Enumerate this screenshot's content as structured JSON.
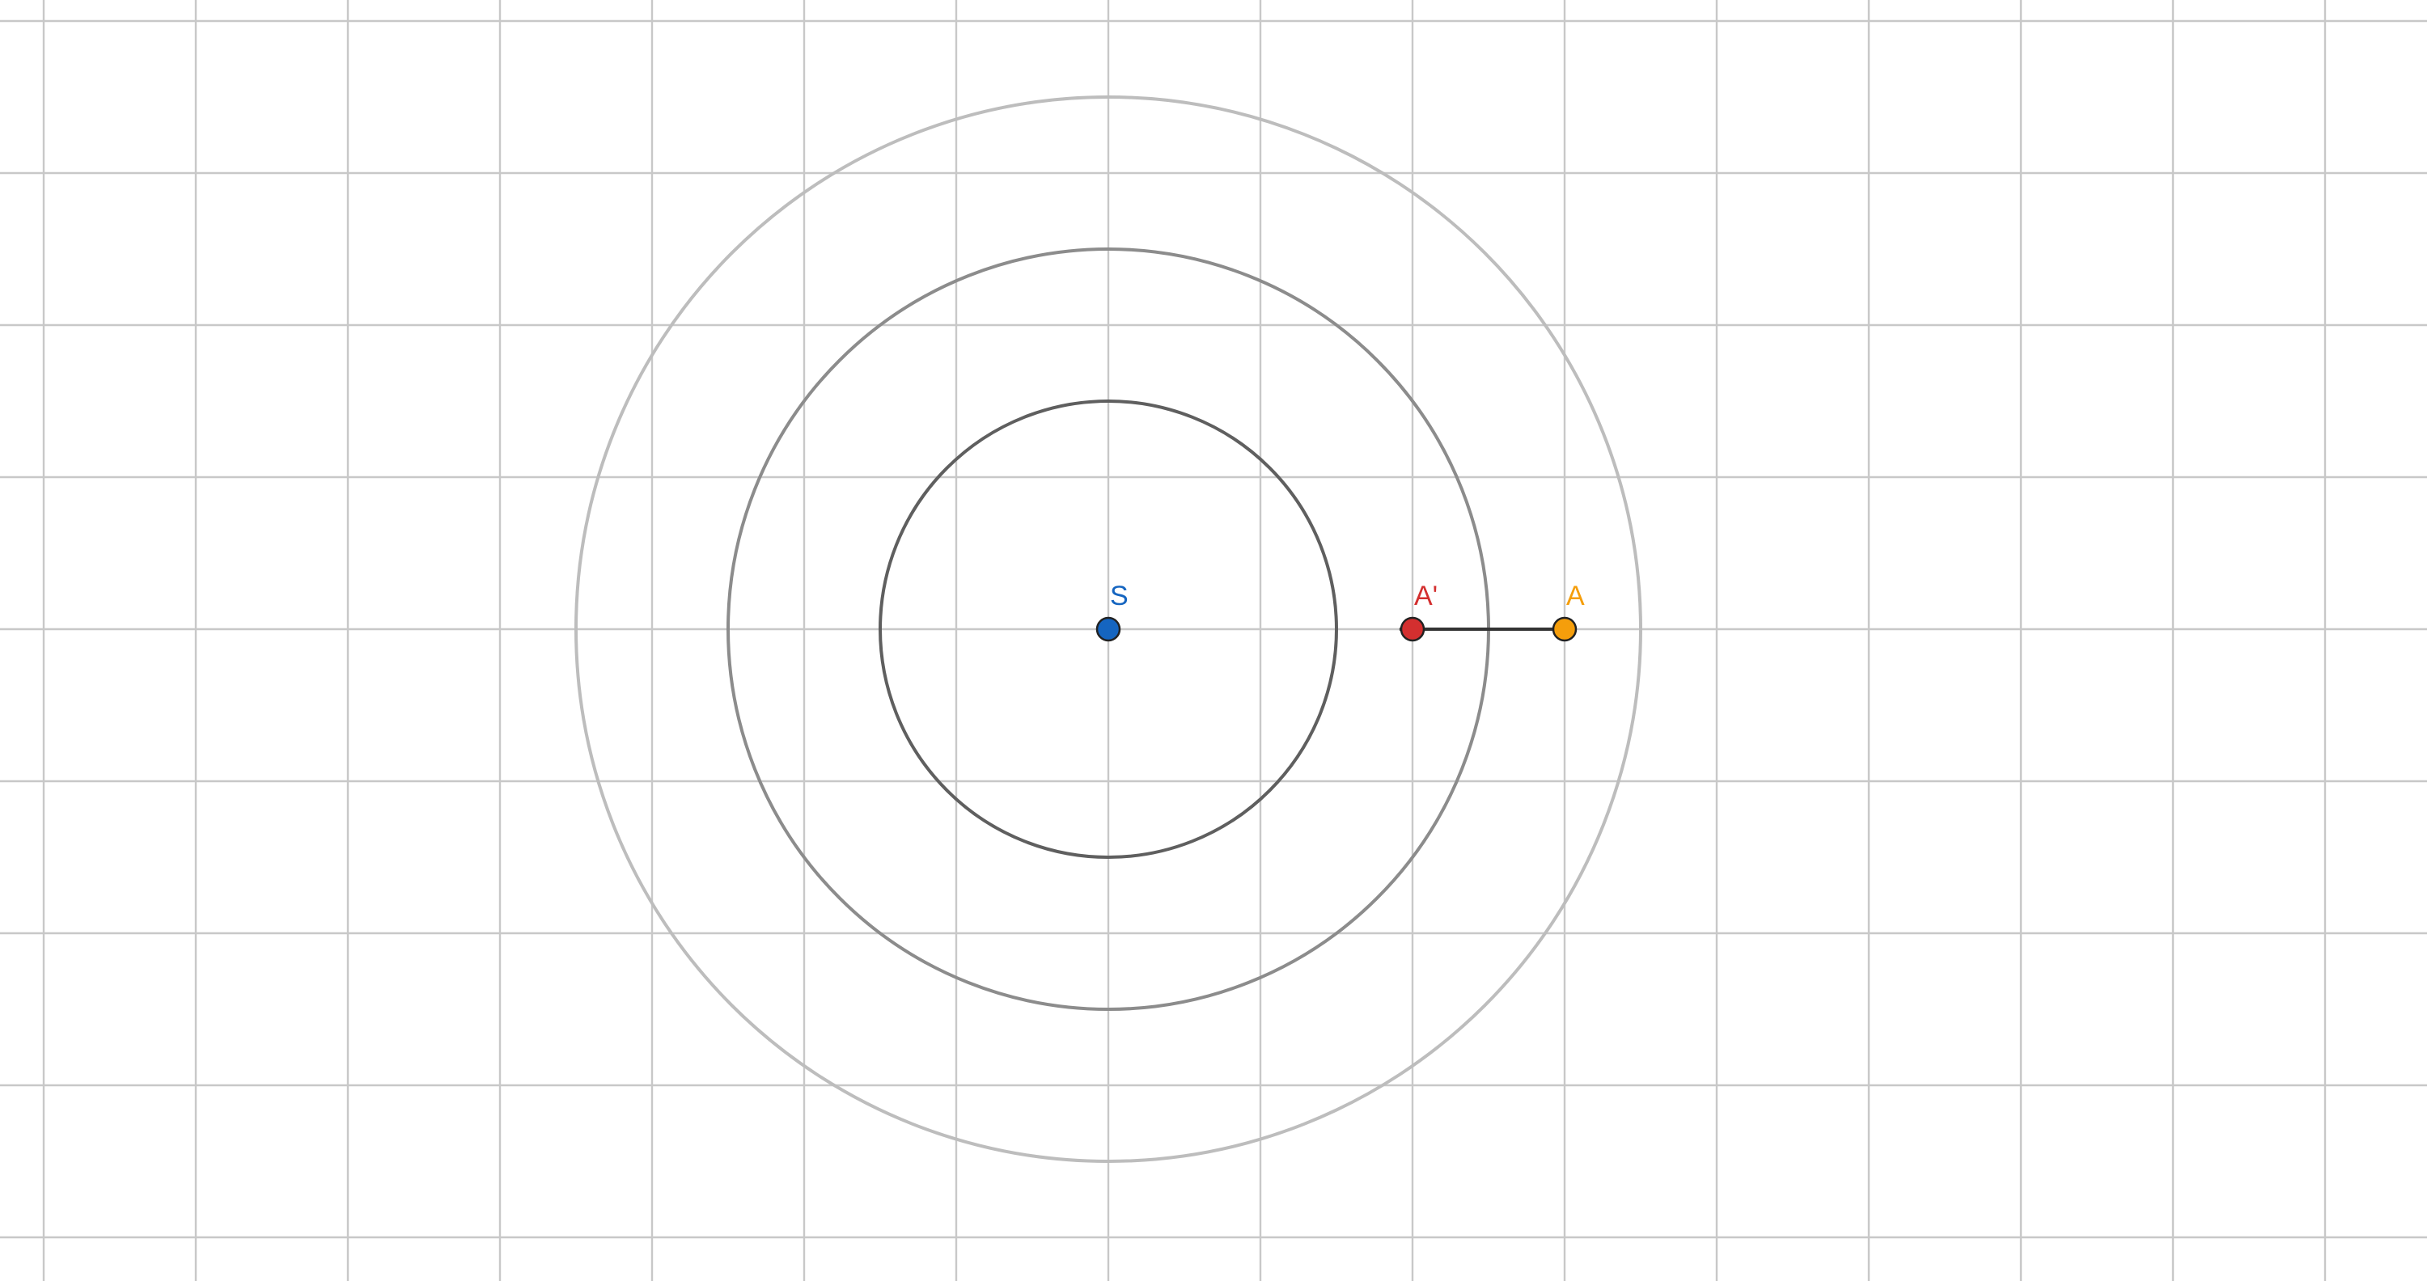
{
  "canvas": {
    "background": "#ffffff",
    "grid_visible": true,
    "grid_color": "#c8c8c8",
    "grid_x_cells": [
      -7,
      8
    ],
    "grid_y_cells": [
      -4,
      4
    ]
  },
  "center": {
    "label": "S",
    "color": "#1565c0",
    "x": 0,
    "y": 0
  },
  "rings": [
    {
      "name": "inner-ring",
      "radius": 1.5,
      "color": "#5f5f5f"
    },
    {
      "name": "middle-ring",
      "radius": 2.5,
      "color": "#8c8c8c"
    },
    {
      "name": "outer-ring",
      "radius": 3.5,
      "color": "#bdbdbd"
    }
  ],
  "points": [
    {
      "id": "a",
      "label": "A",
      "x": 3,
      "y": 0,
      "color": "#f59e0b"
    },
    {
      "id": "a-prime",
      "label": "A'",
      "x": 2,
      "y": 0,
      "color": "#d32f2f"
    }
  ],
  "arrow": {
    "from": "a",
    "to": "a-prime",
    "color": "#333333"
  }
}
